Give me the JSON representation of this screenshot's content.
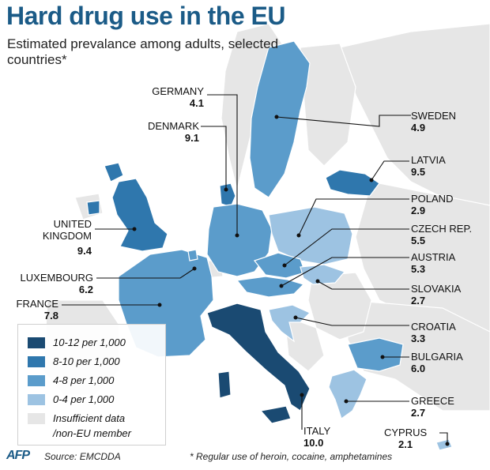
{
  "title": "Hard drug use in the EU",
  "subtitle": "Estimated prevalance among adults, selected countries*",
  "colors": {
    "c10_12": "#1a4a72",
    "c8_10": "#2f77ad",
    "c4_8": "#5b9ccb",
    "c0_4": "#9dc3e2",
    "nodata": "#e6e6e6",
    "sea": "#ffffff"
  },
  "countries": [
    {
      "key": "germany",
      "name": "GERMANY",
      "value": "4.1",
      "band": "c4_8"
    },
    {
      "key": "denmark",
      "name": "DENMARK",
      "value": "9.1",
      "band": "c8_10"
    },
    {
      "key": "sweden",
      "name": "SWEDEN",
      "value": "4.9",
      "band": "c4_8"
    },
    {
      "key": "latvia",
      "name": "LATVIA",
      "value": "9.5",
      "band": "c8_10"
    },
    {
      "key": "poland",
      "name": "POLAND",
      "value": "2.9",
      "band": "c0_4"
    },
    {
      "key": "czech",
      "name": "CZECH REP.",
      "value": "5.5",
      "band": "c4_8"
    },
    {
      "key": "austria",
      "name": "AUSTRIA",
      "value": "5.3",
      "band": "c4_8"
    },
    {
      "key": "slovakia",
      "name": "SLOVAKIA",
      "value": "2.7",
      "band": "c0_4"
    },
    {
      "key": "uk",
      "name": "UNITED KINGDOM",
      "name_lines": [
        "UNITED",
        "KINGDOM"
      ],
      "value": "9.4",
      "band": "c8_10"
    },
    {
      "key": "luxembourg",
      "name": "LUXEMBOURG",
      "value": "6.2",
      "band": "c4_8"
    },
    {
      "key": "france",
      "name": "FRANCE",
      "value": "7.8",
      "band": "c4_8"
    },
    {
      "key": "croatia",
      "name": "CROATIA",
      "value": "3.3",
      "band": "c0_4"
    },
    {
      "key": "bulgaria",
      "name": "BULGARIA",
      "value": "6.0",
      "band": "c4_8"
    },
    {
      "key": "greece",
      "name": "GREECE",
      "value": "2.7",
      "band": "c0_4"
    },
    {
      "key": "italy",
      "name": "ITALY",
      "value": "10.0",
      "band": "c10_12"
    },
    {
      "key": "cyprus",
      "name": "CYPRUS",
      "value": "2.1",
      "band": "c0_4"
    }
  ],
  "legend": [
    {
      "label": "10-12 per 1,000",
      "color": "#1a4a72"
    },
    {
      "label": "8-10 per 1,000",
      "color": "#2f77ad"
    },
    {
      "label": "4-8 per 1,000",
      "color": "#5b9ccb"
    },
    {
      "label": "0-4 per 1,000",
      "color": "#9dc3e2"
    },
    {
      "label_lines": [
        "Insufficient data",
        "/non-EU member"
      ],
      "color": "#e6e6e6"
    }
  ],
  "footer": {
    "logo": "AFP",
    "source": "Source: EMCDDA",
    "note": "* Regular use of heroin, cocaine, amphetamines"
  }
}
